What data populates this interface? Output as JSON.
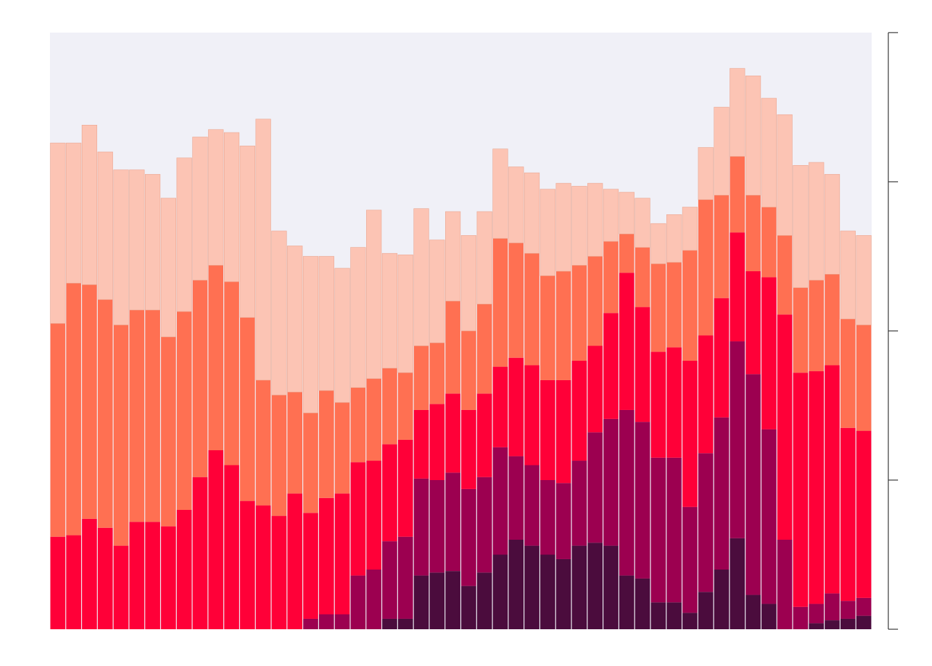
{
  "chart_data": {
    "type": "stacked_bar",
    "categories": [
      null,
      null,
      null,
      null,
      null,
      null,
      null,
      null,
      null,
      null,
      null,
      null,
      null,
      null,
      null,
      null,
      null,
      null,
      null,
      null,
      null,
      null,
      null,
      null,
      null,
      null,
      null,
      null,
      null,
      null,
      null,
      null,
      null,
      null,
      null,
      null,
      null,
      null,
      null,
      null,
      null,
      null,
      null,
      null,
      null,
      null,
      null,
      null,
      null,
      null,
      null,
      null
    ],
    "ylim": [
      0,
      4
    ],
    "yticks": [
      0,
      1,
      2,
      3,
      4
    ],
    "series": [
      {
        "color": "#4b0c3d",
        "values": [
          0,
          0,
          0,
          0,
          0,
          0,
          0,
          0,
          0,
          0,
          0,
          0,
          0,
          0,
          0,
          0,
          0,
          0,
          0,
          0,
          0,
          0.07,
          0.07,
          0.36,
          0.38,
          0.39,
          0.29,
          0.38,
          0.5,
          0.6,
          0.56,
          0.5,
          0.47,
          0.56,
          0.58,
          0.56,
          0.36,
          0.34,
          0.18,
          0.18,
          0.11,
          0.25,
          0.4,
          0.61,
          0.23,
          0.17,
          0,
          0,
          0.04,
          0.06,
          0.07,
          0.09
        ]
      },
      {
        "color": "#9c0050",
        "values": [
          0,
          0,
          0,
          0,
          0,
          0,
          0,
          0,
          0,
          0,
          0,
          0,
          0,
          0,
          0,
          0,
          0.07,
          0.1,
          0.1,
          0.36,
          0.4,
          0.52,
          0.55,
          0.65,
          0.62,
          0.66,
          0.65,
          0.64,
          0.72,
          0.56,
          0.54,
          0.5,
          0.51,
          0.57,
          0.74,
          0.85,
          1.11,
          1.05,
          0.97,
          0.97,
          0.71,
          0.93,
          1.02,
          1.32,
          1.48,
          1.17,
          0.6,
          0.15,
          0.13,
          0.18,
          0.12,
          0.12
        ]
      },
      {
        "color": "#ff0038",
        "values": [
          0.62,
          0.63,
          0.74,
          0.68,
          0.56,
          0.72,
          0.72,
          0.69,
          0.8,
          1.02,
          1.2,
          1.1,
          0.86,
          0.83,
          0.76,
          0.91,
          0.71,
          0.78,
          0.81,
          0.76,
          0.73,
          0.65,
          0.65,
          0.46,
          0.51,
          0.53,
          0.53,
          0.56,
          0.54,
          0.66,
          0.67,
          0.67,
          0.69,
          0.67,
          0.58,
          0.71,
          0.92,
          0.77,
          0.71,
          0.74,
          0.98,
          0.79,
          0.8,
          0.73,
          0.69,
          1.02,
          1.51,
          1.57,
          1.56,
          1.53,
          1.16,
          1.12
        ]
      },
      {
        "color": "#ff7052",
        "values": [
          1.43,
          1.69,
          1.57,
          1.53,
          1.48,
          1.42,
          1.42,
          1.27,
          1.33,
          1.32,
          1.24,
          1.23,
          1.23,
          0.84,
          0.81,
          0.68,
          0.67,
          0.72,
          0.61,
          0.5,
          0.55,
          0.51,
          0.45,
          0.43,
          0.41,
          0.62,
          0.53,
          0.6,
          0.86,
          0.77,
          0.75,
          0.7,
          0.73,
          0.64,
          0.6,
          0.48,
          0.26,
          0.4,
          0.59,
          0.57,
          0.74,
          0.91,
          0.69,
          0.51,
          0.51,
          0.47,
          0.53,
          0.57,
          0.61,
          0.61,
          0.73,
          0.71
        ]
      },
      {
        "color": "#fcc4b4",
        "values": [
          1.21,
          0.94,
          1.07,
          0.99,
          1.04,
          0.94,
          0.91,
          0.93,
          1.03,
          0.96,
          0.91,
          1.0,
          1.15,
          1.75,
          1.1,
          0.98,
          1.05,
          0.9,
          0.9,
          0.94,
          1.13,
          0.77,
          0.79,
          0.92,
          0.69,
          0.6,
          0.64,
          0.62,
          0.6,
          0.51,
          0.54,
          0.58,
          0.59,
          0.53,
          0.49,
          0.35,
          0.28,
          0.33,
          0.27,
          0.32,
          0.29,
          0.35,
          0.59,
          0.59,
          0.8,
          0.73,
          0.81,
          0.82,
          0.79,
          0.67,
          0.59,
          0.6
        ]
      }
    ]
  }
}
